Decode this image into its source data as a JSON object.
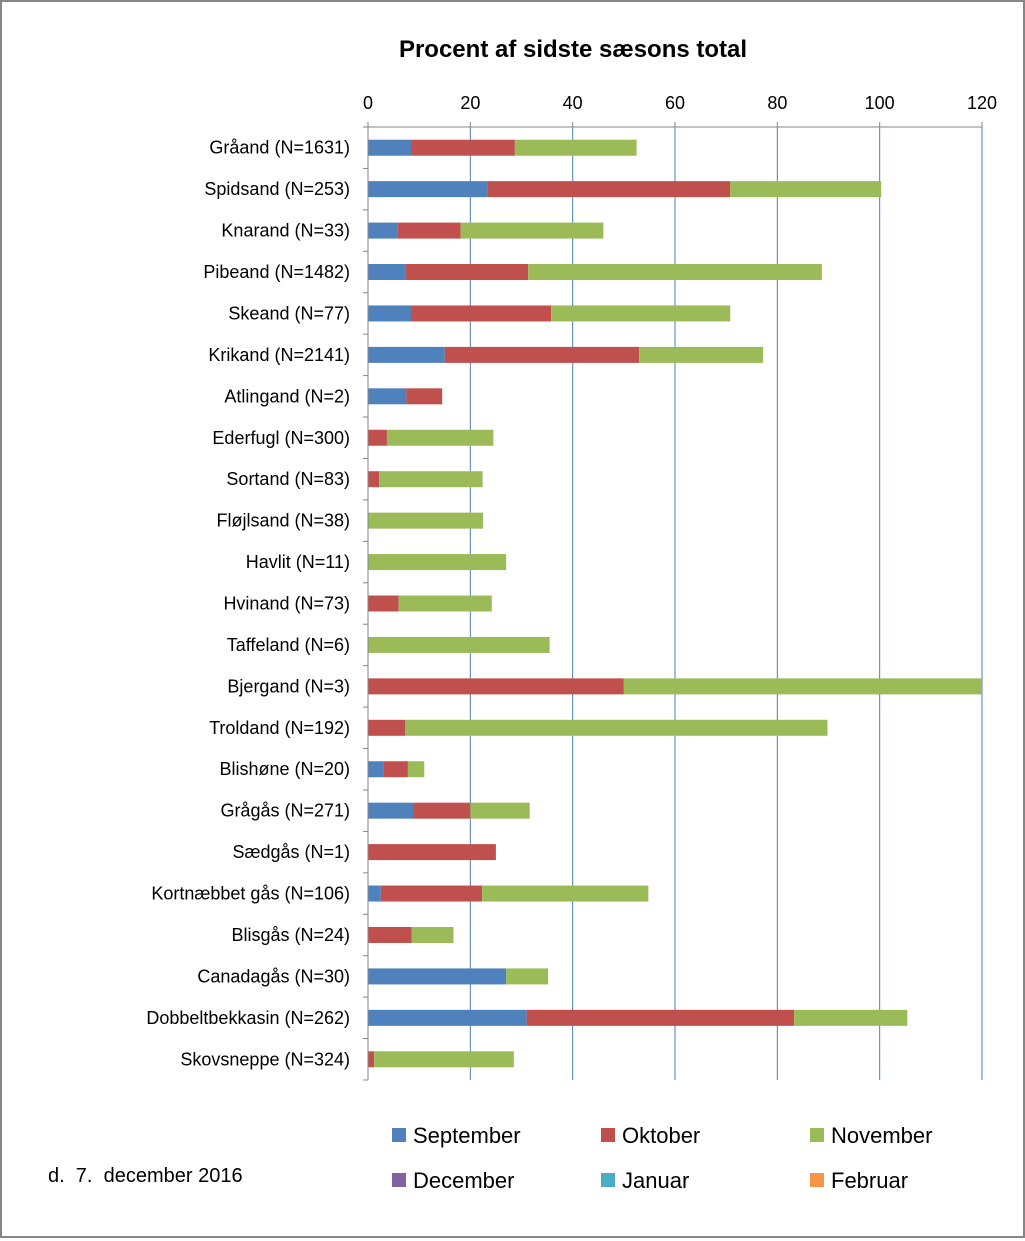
{
  "chart_data": {
    "type": "bar",
    "orientation": "horizontal",
    "stacked": true,
    "title": "Procent af sidste sæsons total",
    "xlim": [
      0,
      120
    ],
    "x_ticks": [
      0,
      20,
      40,
      60,
      80,
      100,
      120
    ],
    "x_axis_position": "top",
    "grid": true,
    "legend_position": "bottom",
    "categories": [
      "Gråand (N=1631)",
      "Spidsand (N=253)",
      "Knarand (N=33)",
      "Pibeand (N=1482)",
      "Skeand (N=77)",
      "Krikand (N=2141)",
      "Atlingand (N=2)",
      "Ederfugl (N=300)",
      "Sortand (N=83)",
      "Fløjlsand (N=38)",
      "Havlit (N=11)",
      "Hvinand (N=73)",
      "Taffeland (N=6)",
      "Bjergand (N=3)",
      "Troldand (N=192)",
      "Blishøne (N=20)",
      "Grågås (N=271)",
      "Sædgås (N=1)",
      "Kortnæbbet gås (N=106)",
      "Blisgås (N=24)",
      "Canadagås (N=30)",
      "Dobbeltbekkasin (N=262)",
      "Skovsneppe (N=324)"
    ],
    "series": [
      {
        "name": "September",
        "color": "#4F81BD",
        "values": [
          8.5,
          23.3,
          5.8,
          7.3,
          8.5,
          15.0,
          7.5,
          0,
          0,
          0,
          0,
          0,
          0,
          0,
          0,
          3.0,
          8.8,
          0,
          2.5,
          0,
          27.0,
          31.0,
          0
        ]
      },
      {
        "name": "Oktober",
        "color": "#C0504D",
        "values": [
          20.2,
          47.5,
          12.3,
          24.0,
          27.3,
          38.0,
          7.0,
          3.7,
          2.2,
          0,
          0,
          6.0,
          0,
          50.0,
          7.3,
          4.8,
          11.2,
          25.0,
          19.8,
          8.5,
          0,
          52.3,
          1.2
        ]
      },
      {
        "name": "November",
        "color": "#9BBB59",
        "values": [
          23.8,
          29.5,
          27.9,
          57.4,
          35.0,
          24.2,
          0,
          20.8,
          20.2,
          22.5,
          27.0,
          18.2,
          35.5,
          70.0,
          82.5,
          3.2,
          11.6,
          0,
          32.5,
          8.2,
          8.2,
          22.1,
          27.3
        ]
      },
      {
        "name": "December",
        "color": "#8064A2",
        "values": [
          0,
          0,
          0,
          0,
          0,
          0,
          0,
          0,
          0,
          0,
          0,
          0,
          0,
          0,
          0,
          0,
          0,
          0,
          0,
          0,
          0,
          0,
          0
        ]
      },
      {
        "name": "Januar",
        "color": "#4BACC6",
        "values": [
          0,
          0,
          0,
          0,
          0,
          0,
          0,
          0,
          0,
          0,
          0,
          0,
          0,
          0,
          0,
          0,
          0,
          0,
          0,
          0,
          0,
          0,
          0
        ]
      },
      {
        "name": "Februar",
        "color": "#F79646",
        "values": [
          0,
          0,
          0,
          0,
          0,
          0,
          0,
          0,
          0,
          0,
          0,
          0,
          0,
          0,
          0,
          0,
          0,
          0,
          0,
          0,
          0,
          0,
          0
        ]
      }
    ],
    "annotation": "d.  7.  december 2016"
  }
}
